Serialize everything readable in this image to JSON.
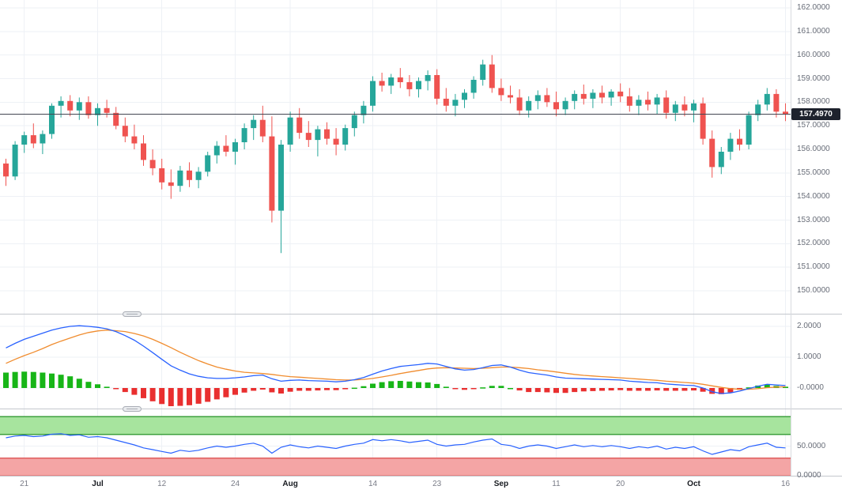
{
  "chart": {
    "current_price_label": "157.4970",
    "colors": {
      "up": "#26a69a",
      "down": "#ef5350",
      "grid": "#eef1f6",
      "price_line": "#434651",
      "badge_bg": "#1e222d",
      "macd_line": "#2962ff",
      "signal_line": "#f08c2e",
      "hist_up": "#17b517",
      "hist_down": "#e92f2f",
      "rsi_line": "#2962ff",
      "band_up_fill": "#a7e49e",
      "band_up_line": "#3da03d",
      "band_down_fill": "#f4a5a5",
      "band_down_line": "#df5f5f"
    },
    "time_ticks": [
      {
        "label": "21",
        "index": 2,
        "major": false
      },
      {
        "label": "Jul",
        "index": 10,
        "major": true
      },
      {
        "label": "12",
        "index": 17,
        "major": false
      },
      {
        "label": "24",
        "index": 25,
        "major": false
      },
      {
        "label": "Aug",
        "index": 31,
        "major": true
      },
      {
        "label": "14",
        "index": 40,
        "major": false
      },
      {
        "label": "23",
        "index": 47,
        "major": false
      },
      {
        "label": "Sep",
        "index": 54,
        "major": true
      },
      {
        "label": "11",
        "index": 60,
        "major": false
      },
      {
        "label": "20",
        "index": 67,
        "major": false
      },
      {
        "label": "Oct",
        "index": 75,
        "major": true
      },
      {
        "label": "16",
        "index": 85,
        "major": false
      }
    ]
  },
  "chart_data": [
    {
      "type": "candlestick",
      "panel": "price",
      "timeframe": "daily",
      "current_price": 157.497,
      "ylim": [
        149.0,
        162.35
      ],
      "y_ticks": [
        {
          "v": 162,
          "label": "162.0000"
        },
        {
          "v": 161,
          "label": "161.0000"
        },
        {
          "v": 160,
          "label": "160.0000"
        },
        {
          "v": 159,
          "label": "159.0000"
        },
        {
          "v": 158,
          "label": "158.0000"
        },
        {
          "v": 157,
          "label": "157.0000"
        },
        {
          "v": 156,
          "label": "156.0000"
        },
        {
          "v": 155,
          "label": "155.0000"
        },
        {
          "v": 154,
          "label": "154.0000"
        },
        {
          "v": 153,
          "label": "153.0000"
        },
        {
          "v": 152,
          "label": "152.0000"
        },
        {
          "v": 151,
          "label": "151.0000"
        },
        {
          "v": 150,
          "label": "150.0000"
        }
      ],
      "x_dates": [
        "Jun 19",
        "Jun 20",
        "Jun 21",
        "Jun 22",
        "Jun 23",
        "Jun 26",
        "Jun 27",
        "Jun 28",
        "Jun 29",
        "Jun 30",
        "Jul 3",
        "Jul 4",
        "Jul 5",
        "Jul 6",
        "Jul 7",
        "Jul 10",
        "Jul 11",
        "Jul 12",
        "Jul 13",
        "Jul 14",
        "Jul 17",
        "Jul 18",
        "Jul 19",
        "Jul 20",
        "Jul 21",
        "Jul 24",
        "Jul 25",
        "Jul 26",
        "Jul 27",
        "Jul 28",
        "Jul 31",
        "Aug 1",
        "Aug 2",
        "Aug 3",
        "Aug 4",
        "Aug 7",
        "Aug 8",
        "Aug 9",
        "Aug 10",
        "Aug 11",
        "Aug 14",
        "Aug 15",
        "Aug 16",
        "Aug 17",
        "Aug 18",
        "Aug 21",
        "Aug 22",
        "Aug 23",
        "Aug 24",
        "Aug 25",
        "Aug 28",
        "Aug 29",
        "Aug 30",
        "Aug 31",
        "Sep 1",
        "Sep 4",
        "Sep 5",
        "Sep 6",
        "Sep 7",
        "Sep 8",
        "Sep 11",
        "Sep 12",
        "Sep 13",
        "Sep 14",
        "Sep 15",
        "Sep 18",
        "Sep 19",
        "Sep 20",
        "Sep 21",
        "Sep 22",
        "Sep 25",
        "Sep 26",
        "Sep 27",
        "Sep 28",
        "Sep 29",
        "Oct 2",
        "Oct 3",
        "Oct 4",
        "Oct 5",
        "Oct 6",
        "Oct 9",
        "Oct 10",
        "Oct 11",
        "Oct 12",
        "Oct 13",
        "Oct 16"
      ],
      "ohlc": [
        [
          155.4,
          155.6,
          154.45,
          154.85
        ],
        [
          154.85,
          156.35,
          154.7,
          156.2
        ],
        [
          156.2,
          156.75,
          155.85,
          156.6
        ],
        [
          156.6,
          157.1,
          156.05,
          156.25
        ],
        [
          156.25,
          156.8,
          155.8,
          156.65
        ],
        [
          156.65,
          157.95,
          156.45,
          157.85
        ],
        [
          157.85,
          158.25,
          157.35,
          158.05
        ],
        [
          158.05,
          158.3,
          157.4,
          157.65
        ],
        [
          157.65,
          158.2,
          157.25,
          158.0
        ],
        [
          158.0,
          158.25,
          157.3,
          157.45
        ],
        [
          157.45,
          157.95,
          157.0,
          157.75
        ],
        [
          157.75,
          158.1,
          157.35,
          157.55
        ],
        [
          157.55,
          157.8,
          156.85,
          157.0
        ],
        [
          157.0,
          157.35,
          156.3,
          156.55
        ],
        [
          156.55,
          157.05,
          156.0,
          156.25
        ],
        [
          156.25,
          156.6,
          155.3,
          155.55
        ],
        [
          155.55,
          156.0,
          154.9,
          155.2
        ],
        [
          155.2,
          155.6,
          154.3,
          154.6
        ],
        [
          154.6,
          155.15,
          153.9,
          154.45
        ],
        [
          154.45,
          155.3,
          154.2,
          155.1
        ],
        [
          155.1,
          155.45,
          154.4,
          154.7
        ],
        [
          154.7,
          155.25,
          154.35,
          155.05
        ],
        [
          155.05,
          155.9,
          154.85,
          155.75
        ],
        [
          155.75,
          156.35,
          155.4,
          156.15
        ],
        [
          156.15,
          156.6,
          155.7,
          155.9
        ],
        [
          155.9,
          156.45,
          155.35,
          156.3
        ],
        [
          156.3,
          157.1,
          156.0,
          156.9
        ],
        [
          156.9,
          157.45,
          156.4,
          157.25
        ],
        [
          157.25,
          157.85,
          156.3,
          156.55
        ],
        [
          156.55,
          157.4,
          152.9,
          153.4
        ],
        [
          153.4,
          156.4,
          151.6,
          156.2
        ],
        [
          156.2,
          157.6,
          155.9,
          157.35
        ],
        [
          157.35,
          157.75,
          156.45,
          156.7
        ],
        [
          156.7,
          157.2,
          156.1,
          156.4
        ],
        [
          156.4,
          157.0,
          155.7,
          156.85
        ],
        [
          156.85,
          157.15,
          156.2,
          156.45
        ],
        [
          156.45,
          156.9,
          155.75,
          156.2
        ],
        [
          156.2,
          157.05,
          155.95,
          156.9
        ],
        [
          156.9,
          157.6,
          156.55,
          157.45
        ],
        [
          157.45,
          158.05,
          157.1,
          157.85
        ],
        [
          157.85,
          159.1,
          157.6,
          158.9
        ],
        [
          158.9,
          159.25,
          158.45,
          158.7
        ],
        [
          158.7,
          159.2,
          158.35,
          159.05
        ],
        [
          159.05,
          159.45,
          158.6,
          158.85
        ],
        [
          158.85,
          159.15,
          158.25,
          158.55
        ],
        [
          158.55,
          159.05,
          158.2,
          158.9
        ],
        [
          158.9,
          159.35,
          158.5,
          159.15
        ],
        [
          159.15,
          159.4,
          157.9,
          158.15
        ],
        [
          158.15,
          158.6,
          157.6,
          157.85
        ],
        [
          157.85,
          158.35,
          157.4,
          158.1
        ],
        [
          158.1,
          158.55,
          157.75,
          158.4
        ],
        [
          158.4,
          159.1,
          158.15,
          158.95
        ],
        [
          158.95,
          159.8,
          158.7,
          159.6
        ],
        [
          159.6,
          160.0,
          158.4,
          158.6
        ],
        [
          158.6,
          159.0,
          158.05,
          158.3
        ],
        [
          158.3,
          158.7,
          157.95,
          158.2
        ],
        [
          158.2,
          158.55,
          157.45,
          157.65
        ],
        [
          157.65,
          158.25,
          157.35,
          158.05
        ],
        [
          158.05,
          158.5,
          157.7,
          158.3
        ],
        [
          158.3,
          158.6,
          157.8,
          158.0
        ],
        [
          158.0,
          158.45,
          157.4,
          157.7
        ],
        [
          157.7,
          158.2,
          157.45,
          158.05
        ],
        [
          158.05,
          158.5,
          157.7,
          158.35
        ],
        [
          158.35,
          158.75,
          157.9,
          158.15
        ],
        [
          158.15,
          158.55,
          157.75,
          158.4
        ],
        [
          158.4,
          158.7,
          157.95,
          158.2
        ],
        [
          158.2,
          158.55,
          157.85,
          158.45
        ],
        [
          158.45,
          158.8,
          158.0,
          158.25
        ],
        [
          158.25,
          158.6,
          157.6,
          157.85
        ],
        [
          157.85,
          158.3,
          157.45,
          158.1
        ],
        [
          158.1,
          158.45,
          157.65,
          157.9
        ],
        [
          157.9,
          158.35,
          157.5,
          158.2
        ],
        [
          158.2,
          158.5,
          157.3,
          157.55
        ],
        [
          157.55,
          158.05,
          157.2,
          157.9
        ],
        [
          157.9,
          158.25,
          157.4,
          157.65
        ],
        [
          157.65,
          158.1,
          157.15,
          157.95
        ],
        [
          157.95,
          158.2,
          156.2,
          156.45
        ],
        [
          156.45,
          156.8,
          154.8,
          155.25
        ],
        [
          155.25,
          156.1,
          154.95,
          155.9
        ],
        [
          155.9,
          156.7,
          155.55,
          156.45
        ],
        [
          156.45,
          156.85,
          155.95,
          156.2
        ],
        [
          156.2,
          157.6,
          156.0,
          157.45
        ],
        [
          157.45,
          158.1,
          157.2,
          157.9
        ],
        [
          157.9,
          158.6,
          157.65,
          158.35
        ],
        [
          158.35,
          158.55,
          157.35,
          157.6
        ],
        [
          157.6,
          157.95,
          157.2,
          157.497
        ]
      ]
    },
    {
      "type": "macd",
      "panel": "indicator-1",
      "histogram": "macd_minus_signal",
      "ylim": [
        -0.67,
        2.38
      ],
      "y_ticks": [
        {
          "v": 2,
          "label": "2.0000"
        },
        {
          "v": 1,
          "label": "1.0000"
        },
        {
          "v": 0,
          "label": "-0.0000"
        }
      ],
      "series": [
        {
          "name": "macd",
          "values": [
            1.3,
            1.45,
            1.58,
            1.68,
            1.78,
            1.88,
            1.95,
            2.0,
            2.02,
            2.0,
            1.97,
            1.92,
            1.83,
            1.7,
            1.55,
            1.36,
            1.15,
            0.93,
            0.72,
            0.58,
            0.46,
            0.38,
            0.33,
            0.31,
            0.31,
            0.33,
            0.36,
            0.4,
            0.42,
            0.3,
            0.22,
            0.25,
            0.26,
            0.24,
            0.23,
            0.22,
            0.2,
            0.22,
            0.27,
            0.34,
            0.45,
            0.55,
            0.63,
            0.7,
            0.73,
            0.76,
            0.8,
            0.78,
            0.7,
            0.62,
            0.58,
            0.6,
            0.66,
            0.73,
            0.75,
            0.68,
            0.58,
            0.5,
            0.46,
            0.42,
            0.36,
            0.32,
            0.31,
            0.3,
            0.29,
            0.28,
            0.27,
            0.26,
            0.22,
            0.2,
            0.18,
            0.17,
            0.13,
            0.11,
            0.09,
            0.08,
            0.0,
            -0.12,
            -0.18,
            -0.16,
            -0.1,
            -0.02,
            0.06,
            0.12,
            0.1,
            0.08
          ]
        },
        {
          "name": "signal",
          "values": [
            0.8,
            0.93,
            1.05,
            1.16,
            1.28,
            1.41,
            1.52,
            1.62,
            1.72,
            1.8,
            1.85,
            1.88,
            1.86,
            1.83,
            1.77,
            1.69,
            1.58,
            1.45,
            1.31,
            1.16,
            1.02,
            0.89,
            0.78,
            0.68,
            0.61,
            0.55,
            0.51,
            0.49,
            0.47,
            0.44,
            0.4,
            0.37,
            0.35,
            0.33,
            0.31,
            0.29,
            0.27,
            0.26,
            0.26,
            0.28,
            0.31,
            0.36,
            0.41,
            0.47,
            0.52,
            0.57,
            0.62,
            0.65,
            0.66,
            0.65,
            0.64,
            0.63,
            0.64,
            0.66,
            0.68,
            0.68,
            0.66,
            0.63,
            0.59,
            0.56,
            0.52,
            0.48,
            0.44,
            0.41,
            0.39,
            0.37,
            0.35,
            0.33,
            0.31,
            0.29,
            0.27,
            0.25,
            0.22,
            0.2,
            0.18,
            0.16,
            0.12,
            0.07,
            0.02,
            -0.02,
            -0.04,
            -0.04,
            -0.02,
            0.01,
            0.03,
            0.04
          ]
        }
      ]
    },
    {
      "type": "line",
      "panel": "indicator-2",
      "name": "oscillator",
      "ylim": [
        0,
        112
      ],
      "bands": {
        "upper": [
          70,
          100
        ],
        "lower": [
          0,
          30
        ]
      },
      "y_ticks": [
        {
          "v": 50,
          "label": "50.0000"
        },
        {
          "v": 0,
          "label": "0.0000"
        }
      ],
      "values": [
        64,
        67,
        68,
        66,
        67,
        70,
        71,
        68,
        69,
        65,
        66,
        64,
        60,
        56,
        52,
        47,
        44,
        41,
        38,
        43,
        41,
        43,
        47,
        50,
        48,
        50,
        53,
        55,
        50,
        38,
        48,
        52,
        49,
        47,
        50,
        48,
        46,
        50,
        53,
        55,
        61,
        59,
        61,
        59,
        56,
        58,
        60,
        53,
        50,
        52,
        53,
        57,
        60,
        62,
        53,
        51,
        46,
        50,
        52,
        50,
        46,
        49,
        52,
        49,
        51,
        49,
        51,
        49,
        46,
        49,
        47,
        50,
        45,
        48,
        46,
        49,
        42,
        36,
        40,
        44,
        42,
        49,
        52,
        55,
        48,
        47
      ]
    }
  ]
}
